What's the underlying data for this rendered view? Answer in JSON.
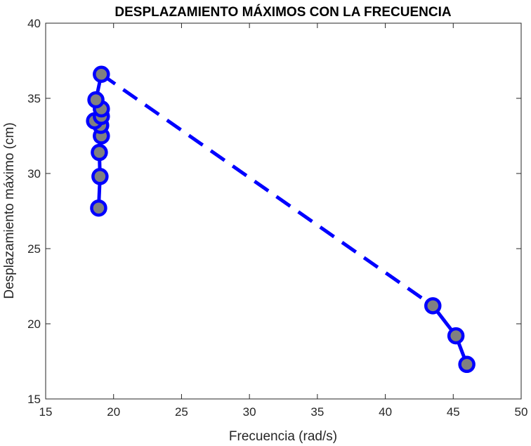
{
  "chart_data": {
    "type": "line",
    "title": "DESPLAZAMIENTO MÁXIMOS CON LA FRECUENCIA",
    "xlabel": "Frecuencia (rad/s)",
    "ylabel": "Desplazamiento máximo (cm)",
    "xlim": [
      15,
      50
    ],
    "ylim": [
      15,
      40
    ],
    "xticks": [
      15,
      20,
      25,
      30,
      35,
      40,
      45,
      50
    ],
    "yticks": [
      15,
      20,
      25,
      30,
      35,
      40
    ],
    "grid": false,
    "series": [
      {
        "x": [
          18.9,
          19.0,
          18.95,
          19.1,
          19.05,
          18.6,
          19.1,
          19.1,
          18.7,
          19.1,
          43.5,
          45.2,
          46.0
        ],
        "y": [
          27.7,
          29.8,
          31.4,
          32.5,
          33.2,
          33.5,
          33.8,
          34.3,
          34.9,
          36.6,
          21.2,
          19.2,
          17.3
        ],
        "line_styles": [
          "solid",
          "solid",
          "solid",
          "solid",
          "solid",
          "solid",
          "solid",
          "solid",
          "solid",
          "dashed",
          "solid",
          "solid"
        ]
      }
    ],
    "colors": {
      "line": "#0000ff",
      "marker_edge": "#0000ff",
      "marker_fill": "#808080",
      "axes": "#262626"
    }
  }
}
